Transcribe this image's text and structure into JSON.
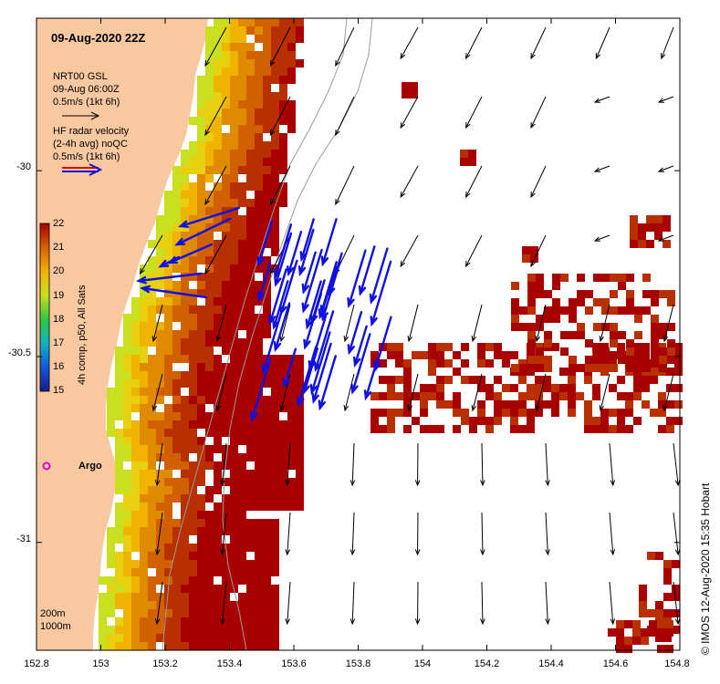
{
  "title": "09-Aug-2020 22Z",
  "legend": {
    "model": {
      "line1": "NRT00 GSL",
      "line2": "09-Aug 06:00Z",
      "line3": "0.5m/s (1kt 6h)"
    },
    "radar": {
      "line1": "HF radar velocity",
      "line2": "(2-4h avg) noQC",
      "line3": "0.5m/s (1kt 6h)"
    }
  },
  "colorbar": {
    "label": "4h comp, p50, All Sats",
    "min": 15,
    "max": 22,
    "ticks": [
      "22",
      "21",
      "20",
      "19",
      "18",
      "17",
      "16",
      "15"
    ]
  },
  "argo_label": "Argo",
  "depth_legend": {
    "line1": "200m",
    "line2": "1000m"
  },
  "credit": "© IMOS 12-Aug-2020 15:35 Hobart",
  "axes": {
    "x_ticks": [
      "152.8",
      "153",
      "153.2",
      "153.4",
      "153.6",
      "153.8",
      "154",
      "154.2",
      "154.4",
      "154.6",
      "154.8"
    ],
    "y_ticks": [
      "-30",
      "-30.5",
      "-31"
    ],
    "lon_range": [
      152.8,
      154.8
    ],
    "lat_range": [
      -29.59,
      -31.29
    ]
  },
  "colors": {
    "land": "#f8c8a0",
    "radar_arrow": "#1010e0",
    "model_arrow": "#000000",
    "warm": "#a80000",
    "argo": "#e000e0"
  }
}
